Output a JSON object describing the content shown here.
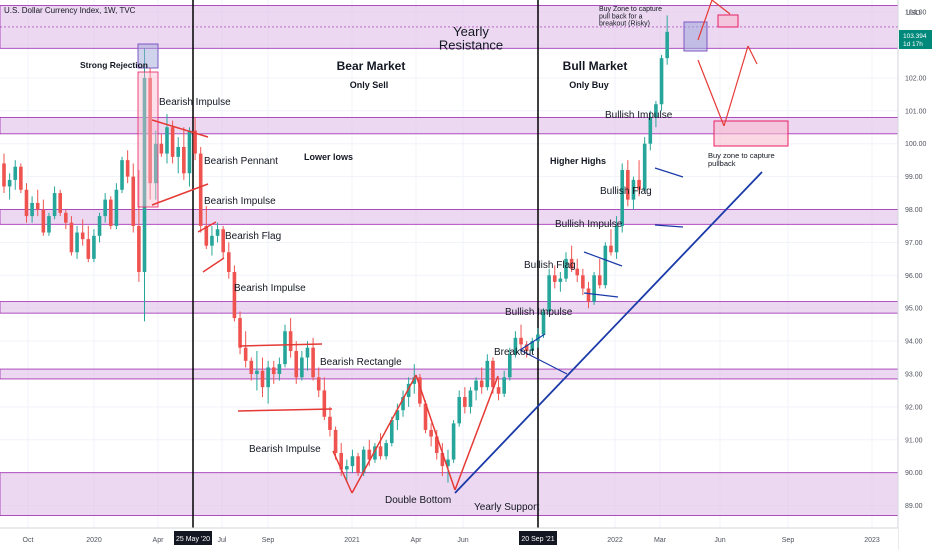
{
  "header": {
    "symbol_line": "U.S. Dollar Currency Index, 1W, TVC",
    "currency": "USD"
  },
  "colors": {
    "up": "#26a69a",
    "down": "#ef5350",
    "zone_fill": "#e1bee7",
    "zone_border": "#9c27b0",
    "pink_fill": "#f8bbd0",
    "pink_border": "#e91e63",
    "trend_blue": "#1a3aa8",
    "pattern_red": "#e53935",
    "price_tag": "#00897b"
  },
  "chart_data": {
    "type": "candlestick",
    "title": "U.S. Dollar Currency Index, 1W, TVC",
    "ylim": [
      88.5,
      104.4
    ],
    "y_ticks": [
      "104.00",
      "103.00",
      "102.00",
      "101.00",
      "100.00",
      "99.00",
      "98.00",
      "97.00",
      "96.00",
      "95.00",
      "94.00",
      "93.00",
      "92.00",
      "91.00",
      "90.00",
      "89.00"
    ],
    "x_ticks": [
      "Oct",
      "2020",
      "Apr",
      "Jul",
      "Sep",
      "2021",
      "Apr",
      "Jun",
      "2022",
      "Mar",
      "Jun",
      "Sep",
      "2023"
    ],
    "last_price": "103.394",
    "countdown": "1d 17h",
    "candles": [
      {
        "o": 99.4,
        "h": 99.7,
        "l": 98.5,
        "c": 98.7
      },
      {
        "o": 98.7,
        "h": 99.1,
        "l": 98.3,
        "c": 98.9
      },
      {
        "o": 98.9,
        "h": 99.5,
        "l": 98.6,
        "c": 99.3
      },
      {
        "o": 99.3,
        "h": 99.4,
        "l": 98.5,
        "c": 98.6
      },
      {
        "o": 98.6,
        "h": 98.8,
        "l": 97.6,
        "c": 97.8
      },
      {
        "o": 97.8,
        "h": 98.4,
        "l": 97.6,
        "c": 98.2
      },
      {
        "o": 98.2,
        "h": 98.6,
        "l": 97.8,
        "c": 98.0
      },
      {
        "o": 98.0,
        "h": 98.3,
        "l": 97.2,
        "c": 97.3
      },
      {
        "o": 97.3,
        "h": 97.9,
        "l": 97.2,
        "c": 97.8
      },
      {
        "o": 97.8,
        "h": 98.7,
        "l": 97.7,
        "c": 98.5
      },
      {
        "o": 98.5,
        "h": 98.6,
        "l": 97.8,
        "c": 97.9
      },
      {
        "o": 97.9,
        "h": 98.0,
        "l": 97.4,
        "c": 97.6
      },
      {
        "o": 97.6,
        "h": 97.8,
        "l": 96.6,
        "c": 96.7
      },
      {
        "o": 96.7,
        "h": 97.5,
        "l": 96.5,
        "c": 97.3
      },
      {
        "o": 97.3,
        "h": 97.7,
        "l": 96.9,
        "c": 97.1
      },
      {
        "o": 97.1,
        "h": 97.5,
        "l": 96.4,
        "c": 96.5
      },
      {
        "o": 96.5,
        "h": 97.4,
        "l": 96.4,
        "c": 97.2
      },
      {
        "o": 97.2,
        "h": 97.9,
        "l": 97.0,
        "c": 97.8
      },
      {
        "o": 97.8,
        "h": 98.5,
        "l": 97.6,
        "c": 98.3
      },
      {
        "o": 98.3,
        "h": 98.4,
        "l": 97.4,
        "c": 97.5
      },
      {
        "o": 97.5,
        "h": 98.8,
        "l": 97.4,
        "c": 98.6
      },
      {
        "o": 98.6,
        "h": 99.6,
        "l": 98.5,
        "c": 99.5
      },
      {
        "o": 99.5,
        "h": 99.8,
        "l": 98.8,
        "c": 99.0
      },
      {
        "o": 99.0,
        "h": 99.4,
        "l": 97.3,
        "c": 97.5
      },
      {
        "o": 97.5,
        "h": 99.2,
        "l": 95.8,
        "c": 96.1
      },
      {
        "o": 96.1,
        "h": 102.9,
        "l": 94.6,
        "c": 102.0
      },
      {
        "o": 102.0,
        "h": 102.3,
        "l": 98.3,
        "c": 98.8
      },
      {
        "o": 98.8,
        "h": 100.4,
        "l": 98.3,
        "c": 100.0
      },
      {
        "o": 100.0,
        "h": 100.3,
        "l": 99.6,
        "c": 99.7
      },
      {
        "o": 99.7,
        "h": 100.9,
        "l": 99.4,
        "c": 100.5
      },
      {
        "o": 100.5,
        "h": 100.7,
        "l": 99.4,
        "c": 99.6
      },
      {
        "o": 99.6,
        "h": 100.2,
        "l": 99.1,
        "c": 99.9
      },
      {
        "o": 99.9,
        "h": 100.5,
        "l": 98.9,
        "c": 99.1
      },
      {
        "o": 99.1,
        "h": 100.5,
        "l": 98.7,
        "c": 100.4
      },
      {
        "o": 100.4,
        "h": 100.8,
        "l": 99.5,
        "c": 99.7
      },
      {
        "o": 99.7,
        "h": 99.9,
        "l": 97.3,
        "c": 97.5
      },
      {
        "o": 97.5,
        "h": 98.1,
        "l": 96.8,
        "c": 96.9
      },
      {
        "o": 96.9,
        "h": 97.5,
        "l": 96.6,
        "c": 97.2
      },
      {
        "o": 97.2,
        "h": 97.6,
        "l": 97.0,
        "c": 97.4
      },
      {
        "o": 97.4,
        "h": 97.5,
        "l": 96.5,
        "c": 96.7
      },
      {
        "o": 96.7,
        "h": 97.0,
        "l": 95.9,
        "c": 96.1
      },
      {
        "o": 96.1,
        "h": 96.3,
        "l": 94.6,
        "c": 94.7
      },
      {
        "o": 94.7,
        "h": 94.9,
        "l": 93.6,
        "c": 93.8
      },
      {
        "o": 93.8,
        "h": 94.3,
        "l": 93.2,
        "c": 93.4
      },
      {
        "o": 93.4,
        "h": 93.5,
        "l": 92.8,
        "c": 93.0
      },
      {
        "o": 93.0,
        "h": 93.7,
        "l": 92.5,
        "c": 93.1
      },
      {
        "o": 93.1,
        "h": 93.5,
        "l": 92.3,
        "c": 92.6
      },
      {
        "o": 92.6,
        "h": 93.4,
        "l": 92.1,
        "c": 93.2
      },
      {
        "o": 93.2,
        "h": 93.4,
        "l": 92.7,
        "c": 93.0
      },
      {
        "o": 93.0,
        "h": 93.5,
        "l": 92.8,
        "c": 93.3
      },
      {
        "o": 93.3,
        "h": 94.5,
        "l": 93.2,
        "c": 94.3
      },
      {
        "o": 94.3,
        "h": 94.7,
        "l": 93.5,
        "c": 93.7
      },
      {
        "o": 93.7,
        "h": 94.0,
        "l": 92.7,
        "c": 92.9
      },
      {
        "o": 92.9,
        "h": 93.7,
        "l": 92.8,
        "c": 93.5
      },
      {
        "o": 93.5,
        "h": 94.0,
        "l": 93.1,
        "c": 93.8
      },
      {
        "o": 93.8,
        "h": 94.1,
        "l": 92.8,
        "c": 92.9
      },
      {
        "o": 92.9,
        "h": 93.2,
        "l": 92.3,
        "c": 92.5
      },
      {
        "o": 92.5,
        "h": 92.9,
        "l": 91.6,
        "c": 91.7
      },
      {
        "o": 91.7,
        "h": 92.0,
        "l": 91.1,
        "c": 91.3
      },
      {
        "o": 91.3,
        "h": 91.4,
        "l": 90.4,
        "c": 90.6
      },
      {
        "o": 90.6,
        "h": 90.9,
        "l": 89.9,
        "c": 90.1
      },
      {
        "o": 90.1,
        "h": 90.4,
        "l": 89.7,
        "c": 90.2
      },
      {
        "o": 90.2,
        "h": 90.7,
        "l": 90.0,
        "c": 90.5
      },
      {
        "o": 90.5,
        "h": 90.6,
        "l": 89.9,
        "c": 90.0
      },
      {
        "o": 90.0,
        "h": 90.8,
        "l": 89.9,
        "c": 90.7
      },
      {
        "o": 90.7,
        "h": 91.0,
        "l": 90.2,
        "c": 90.4
      },
      {
        "o": 90.4,
        "h": 90.9,
        "l": 90.3,
        "c": 90.8
      },
      {
        "o": 90.8,
        "h": 91.2,
        "l": 90.4,
        "c": 90.5
      },
      {
        "o": 90.5,
        "h": 91.0,
        "l": 90.4,
        "c": 90.9
      },
      {
        "o": 90.9,
        "h": 91.7,
        "l": 90.8,
        "c": 91.6
      },
      {
        "o": 91.6,
        "h": 92.1,
        "l": 91.3,
        "c": 91.9
      },
      {
        "o": 91.9,
        "h": 92.5,
        "l": 91.7,
        "c": 92.3
      },
      {
        "o": 92.3,
        "h": 92.9,
        "l": 92.0,
        "c": 92.7
      },
      {
        "o": 92.7,
        "h": 93.3,
        "l": 92.4,
        "c": 92.9
      },
      {
        "o": 92.9,
        "h": 93.0,
        "l": 92.0,
        "c": 92.1
      },
      {
        "o": 92.1,
        "h": 92.2,
        "l": 91.2,
        "c": 91.3
      },
      {
        "o": 91.3,
        "h": 91.5,
        "l": 90.8,
        "c": 91.1
      },
      {
        "o": 91.1,
        "h": 91.3,
        "l": 90.4,
        "c": 90.6
      },
      {
        "o": 90.6,
        "h": 90.9,
        "l": 89.9,
        "c": 90.2
      },
      {
        "o": 90.2,
        "h": 90.7,
        "l": 89.7,
        "c": 90.4
      },
      {
        "o": 90.4,
        "h": 91.6,
        "l": 90.3,
        "c": 91.5
      },
      {
        "o": 91.5,
        "h": 92.5,
        "l": 91.4,
        "c": 92.3
      },
      {
        "o": 92.3,
        "h": 92.6,
        "l": 91.8,
        "c": 92.0
      },
      {
        "o": 92.0,
        "h": 92.6,
        "l": 91.8,
        "c": 92.5
      },
      {
        "o": 92.5,
        "h": 92.9,
        "l": 92.2,
        "c": 92.8
      },
      {
        "o": 92.8,
        "h": 93.2,
        "l": 92.4,
        "c": 92.6
      },
      {
        "o": 92.6,
        "h": 93.6,
        "l": 92.5,
        "c": 93.4
      },
      {
        "o": 93.4,
        "h": 93.5,
        "l": 92.4,
        "c": 92.6
      },
      {
        "o": 92.6,
        "h": 92.9,
        "l": 92.2,
        "c": 92.4
      },
      {
        "o": 92.4,
        "h": 93.1,
        "l": 92.3,
        "c": 92.9
      },
      {
        "o": 92.9,
        "h": 93.8,
        "l": 92.8,
        "c": 93.6
      },
      {
        "o": 93.6,
        "h": 94.3,
        "l": 93.5,
        "c": 94.1
      },
      {
        "o": 94.1,
        "h": 94.5,
        "l": 93.7,
        "c": 93.9
      },
      {
        "o": 93.9,
        "h": 94.0,
        "l": 93.5,
        "c": 93.7
      },
      {
        "o": 93.7,
        "h": 94.1,
        "l": 93.6,
        "c": 94.0
      },
      {
        "o": 94.0,
        "h": 94.4,
        "l": 93.8,
        "c": 94.2
      },
      {
        "o": 94.2,
        "h": 95.0,
        "l": 94.1,
        "c": 94.9
      },
      {
        "o": 94.9,
        "h": 96.2,
        "l": 94.8,
        "c": 96.0
      },
      {
        "o": 96.0,
        "h": 96.3,
        "l": 95.6,
        "c": 95.8
      },
      {
        "o": 95.8,
        "h": 96.1,
        "l": 95.5,
        "c": 95.9
      },
      {
        "o": 95.9,
        "h": 96.7,
        "l": 95.8,
        "c": 96.5
      },
      {
        "o": 96.5,
        "h": 96.9,
        "l": 96.1,
        "c": 96.2
      },
      {
        "o": 96.2,
        "h": 96.5,
        "l": 95.8,
        "c": 96.0
      },
      {
        "o": 96.0,
        "h": 96.2,
        "l": 95.4,
        "c": 95.6
      },
      {
        "o": 95.6,
        "h": 95.8,
        "l": 95.0,
        "c": 95.2
      },
      {
        "o": 95.2,
        "h": 96.1,
        "l": 95.1,
        "c": 96.0
      },
      {
        "o": 96.0,
        "h": 96.5,
        "l": 95.6,
        "c": 95.7
      },
      {
        "o": 95.7,
        "h": 97.0,
        "l": 95.6,
        "c": 96.9
      },
      {
        "o": 96.9,
        "h": 97.4,
        "l": 96.6,
        "c": 96.7
      },
      {
        "o": 96.7,
        "h": 97.8,
        "l": 96.5,
        "c": 97.5
      },
      {
        "o": 97.5,
        "h": 99.4,
        "l": 97.3,
        "c": 99.2
      },
      {
        "o": 99.2,
        "h": 99.5,
        "l": 98.1,
        "c": 98.3
      },
      {
        "o": 98.3,
        "h": 99.0,
        "l": 98.0,
        "c": 98.9
      },
      {
        "o": 98.9,
        "h": 99.5,
        "l": 98.4,
        "c": 98.6
      },
      {
        "o": 98.6,
        "h": 100.2,
        "l": 98.5,
        "c": 100.0
      },
      {
        "o": 100.0,
        "h": 101.0,
        "l": 99.8,
        "c": 100.8
      },
      {
        "o": 100.8,
        "h": 101.3,
        "l": 100.5,
        "c": 101.2
      },
      {
        "o": 101.2,
        "h": 102.7,
        "l": 101.0,
        "c": 102.6
      },
      {
        "o": 102.6,
        "h": 103.9,
        "l": 102.4,
        "c": 103.4
      }
    ]
  },
  "annotations": {
    "yearly_resistance": "Yearly\nResistance",
    "strong_rejection": "Strong Rejection",
    "bear_market": "Bear Market",
    "only_sell": "Only Sell",
    "bull_market": "Bull Market",
    "only_buy": "Only Buy",
    "bearish_impulse": "Bearish Impulse",
    "bearish_pennant": "Bearish Pennant",
    "bearish_flag": "Bearish Flag",
    "bearish_rectangle": "Bearish Rectangle",
    "lower_lows": "Lower lows",
    "higher_highs": "Higher Highs",
    "bullish_impulse": "Bullish Impulse",
    "bullish_flag": "Bullish Flag",
    "breakout": "Breakout",
    "double_bottom": "Double Bottom",
    "yearly_support": "Yearly Support",
    "buy_zone_risky": "Buy Zone to capture\npull back for a\nbreakout (Risky)",
    "buy_zone_pullback": "Buy zone to capture\npullback",
    "date_marker_1": "25 May '20",
    "date_marker_2": "20 Sep '21"
  }
}
